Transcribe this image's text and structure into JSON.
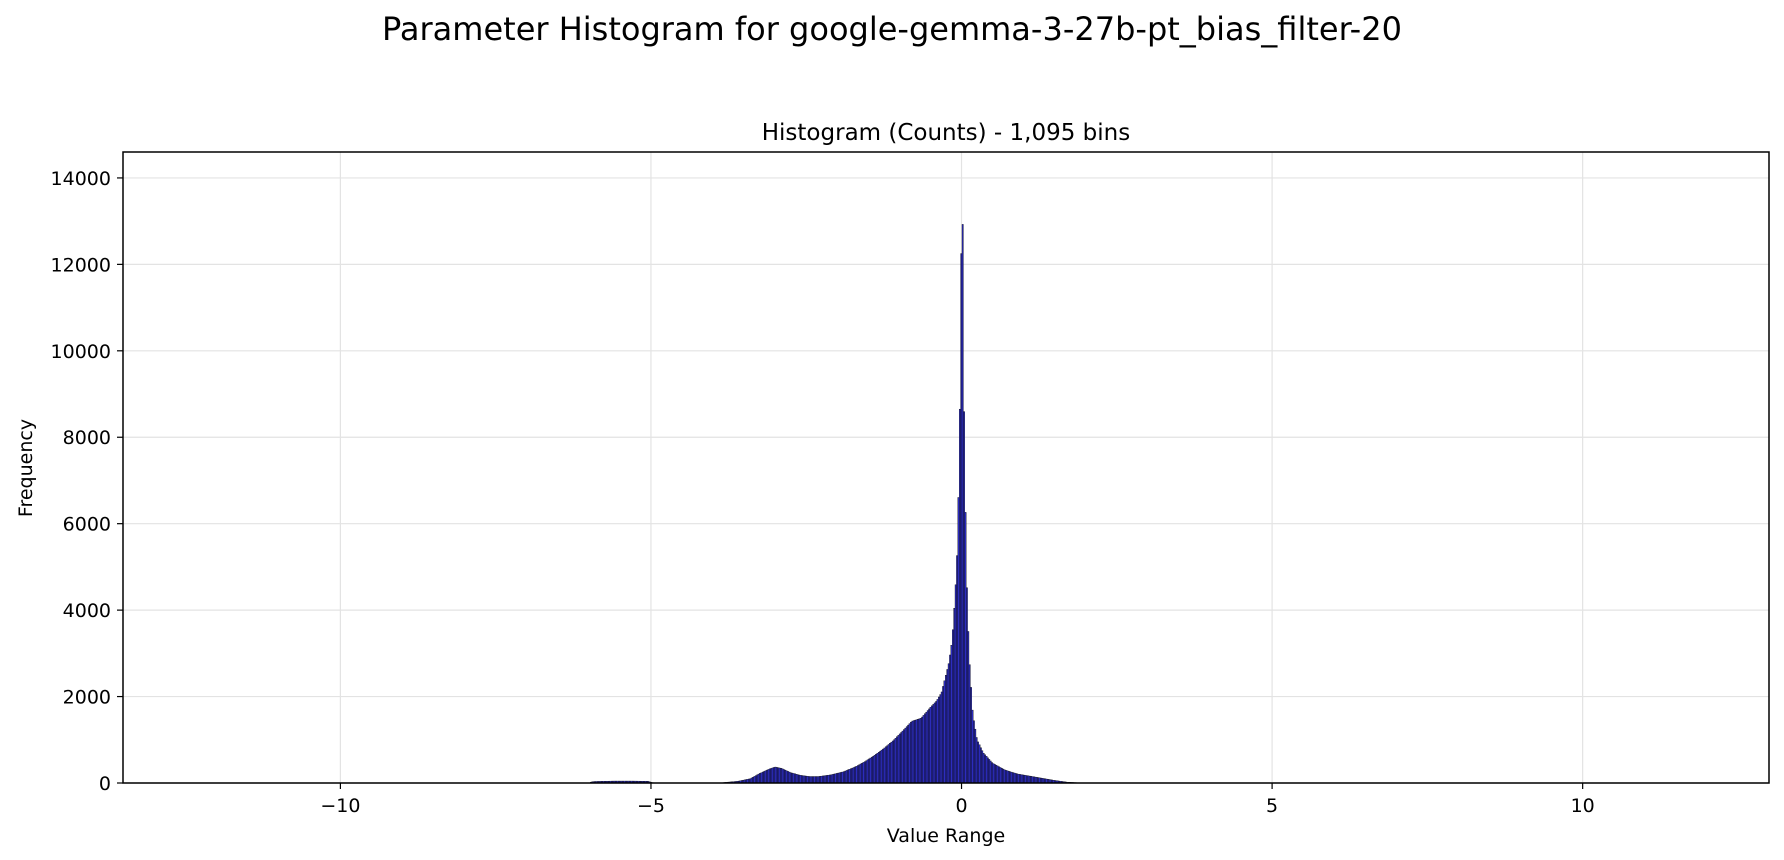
{
  "figure_title": "Parameter Histogram for google-gemma-3-27b-pt_bias_filter-20",
  "chart_data": {
    "type": "bar",
    "title": "Histogram (Counts) - 1,095 bins",
    "xlabel": "Value Range",
    "ylabel": "Frequency",
    "xlim": [
      -13.5,
      13.0
    ],
    "ylim": [
      0,
      14600
    ],
    "xticks": [
      -10,
      -5,
      0,
      5,
      10
    ],
    "xtick_labels": [
      "−10",
      "−5",
      "0",
      "5",
      "10"
    ],
    "yticks": [
      0,
      2000,
      4000,
      6000,
      8000,
      10000,
      12000,
      14000
    ],
    "ytick_labels": [
      "0",
      "2000",
      "4000",
      "6000",
      "8000",
      "10000",
      "12000",
      "14000"
    ],
    "grid": true,
    "bar_color": "#2d2dbf",
    "edge_color": "#000000",
    "bin_width": 0.0225,
    "profile": [
      [
        -6.0,
        0
      ],
      [
        -5.95,
        30
      ],
      [
        -5.9,
        35
      ],
      [
        -5.6,
        45
      ],
      [
        -5.3,
        45
      ],
      [
        -5.05,
        40
      ],
      [
        -4.95,
        0
      ],
      [
        -3.9,
        0
      ],
      [
        -3.8,
        15
      ],
      [
        -3.6,
        40
      ],
      [
        -3.4,
        100
      ],
      [
        -3.25,
        220
      ],
      [
        -3.1,
        320
      ],
      [
        -3.0,
        370
      ],
      [
        -2.9,
        340
      ],
      [
        -2.75,
        240
      ],
      [
        -2.6,
        180
      ],
      [
        -2.45,
        150
      ],
      [
        -2.3,
        150
      ],
      [
        -2.1,
        190
      ],
      [
        -1.9,
        260
      ],
      [
        -1.7,
        380
      ],
      [
        -1.55,
        500
      ],
      [
        -1.4,
        640
      ],
      [
        -1.25,
        800
      ],
      [
        -1.1,
        980
      ],
      [
        -0.95,
        1200
      ],
      [
        -0.8,
        1430
      ],
      [
        -0.65,
        1500
      ],
      [
        -0.5,
        1750
      ],
      [
        -0.4,
        1900
      ],
      [
        -0.32,
        2100
      ],
      [
        -0.25,
        2500
      ],
      [
        -0.2,
        2800
      ],
      [
        -0.15,
        3300
      ],
      [
        -0.1,
        4400
      ],
      [
        -0.07,
        5300
      ],
      [
        -0.05,
        6500
      ],
      [
        -0.03,
        8200
      ],
      [
        -0.015,
        10000
      ],
      [
        0.0,
        13000
      ],
      [
        0.015,
        13900
      ],
      [
        0.03,
        10000
      ],
      [
        0.05,
        7500
      ],
      [
        0.08,
        4800
      ],
      [
        0.12,
        3000
      ],
      [
        0.18,
        1600
      ],
      [
        0.25,
        1000
      ],
      [
        0.35,
        700
      ],
      [
        0.5,
        460
      ],
      [
        0.7,
        300
      ],
      [
        0.9,
        210
      ],
      [
        1.1,
        160
      ],
      [
        1.3,
        110
      ],
      [
        1.5,
        60
      ],
      [
        1.7,
        20
      ],
      [
        1.9,
        5
      ],
      [
        2.1,
        0
      ]
    ]
  }
}
